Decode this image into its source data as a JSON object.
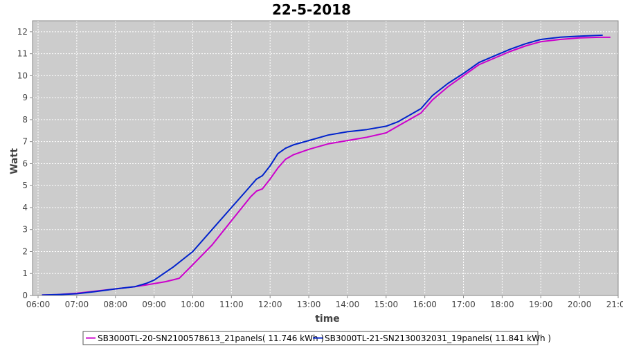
{
  "chart_data": {
    "type": "line",
    "title": "22-5-2018",
    "xlabel": "time",
    "ylabel": "Watt",
    "x_ticks": [
      "06:00",
      "07:00",
      "08:00",
      "09:00",
      "10:00",
      "11:00",
      "12:00",
      "13:00",
      "14:00",
      "15:00",
      "16:00",
      "17:00",
      "18:00",
      "19:00",
      "20:00",
      "21:00"
    ],
    "xlim": [
      6.0,
      21.0
    ],
    "ylim": [
      0,
      12.5
    ],
    "y_ticks": [
      0,
      1,
      2,
      3,
      4,
      5,
      6,
      7,
      8,
      9,
      10,
      11,
      12
    ],
    "grid": true,
    "legend_position": "bottom",
    "background_color": "#cccccc",
    "series": [
      {
        "name": "SB3000TL-20-SN2100578613_21panels( 11.746 kWh )",
        "color": "#cc00cc",
        "x": [
          6.1,
          6.5,
          7.0,
          7.5,
          8.0,
          8.5,
          8.8,
          9.3,
          9.65,
          10.0,
          10.5,
          11.0,
          11.5,
          11.65,
          11.8,
          12.0,
          12.2,
          12.4,
          12.6,
          13.0,
          13.5,
          14.0,
          14.5,
          15.0,
          15.3,
          15.6,
          15.9,
          16.2,
          16.6,
          17.0,
          17.4,
          17.8,
          18.2,
          18.6,
          19.0,
          19.5,
          20.0,
          20.5,
          20.8
        ],
        "y": [
          0.02,
          0.04,
          0.1,
          0.2,
          0.3,
          0.4,
          0.48,
          0.63,
          0.78,
          1.4,
          2.3,
          3.4,
          4.5,
          4.75,
          4.85,
          5.3,
          5.8,
          6.2,
          6.4,
          6.65,
          6.9,
          7.05,
          7.2,
          7.4,
          7.7,
          8.0,
          8.3,
          8.9,
          9.5,
          10.0,
          10.5,
          10.8,
          11.1,
          11.35,
          11.55,
          11.65,
          11.72,
          11.746,
          11.746
        ]
      },
      {
        "name": "SB3000TL-21-SN2130032031_19panels( 11.841 kWh )",
        "color": "#0022cc",
        "x": [
          6.1,
          6.5,
          7.0,
          7.5,
          8.0,
          8.5,
          8.8,
          9.0,
          9.5,
          10.0,
          10.5,
          11.0,
          11.4,
          11.65,
          11.8,
          12.0,
          12.2,
          12.4,
          12.6,
          13.0,
          13.5,
          14.0,
          14.5,
          15.0,
          15.3,
          15.6,
          15.9,
          16.2,
          16.6,
          17.0,
          17.4,
          17.8,
          18.2,
          18.6,
          19.0,
          19.5,
          20.0,
          20.6
        ],
        "y": [
          0.02,
          0.04,
          0.08,
          0.18,
          0.3,
          0.4,
          0.55,
          0.7,
          1.3,
          2.0,
          3.0,
          4.0,
          4.8,
          5.3,
          5.45,
          5.9,
          6.45,
          6.7,
          6.85,
          7.05,
          7.3,
          7.45,
          7.55,
          7.7,
          7.9,
          8.2,
          8.5,
          9.1,
          9.65,
          10.1,
          10.6,
          10.9,
          11.2,
          11.45,
          11.65,
          11.75,
          11.8,
          11.841
        ]
      }
    ]
  }
}
